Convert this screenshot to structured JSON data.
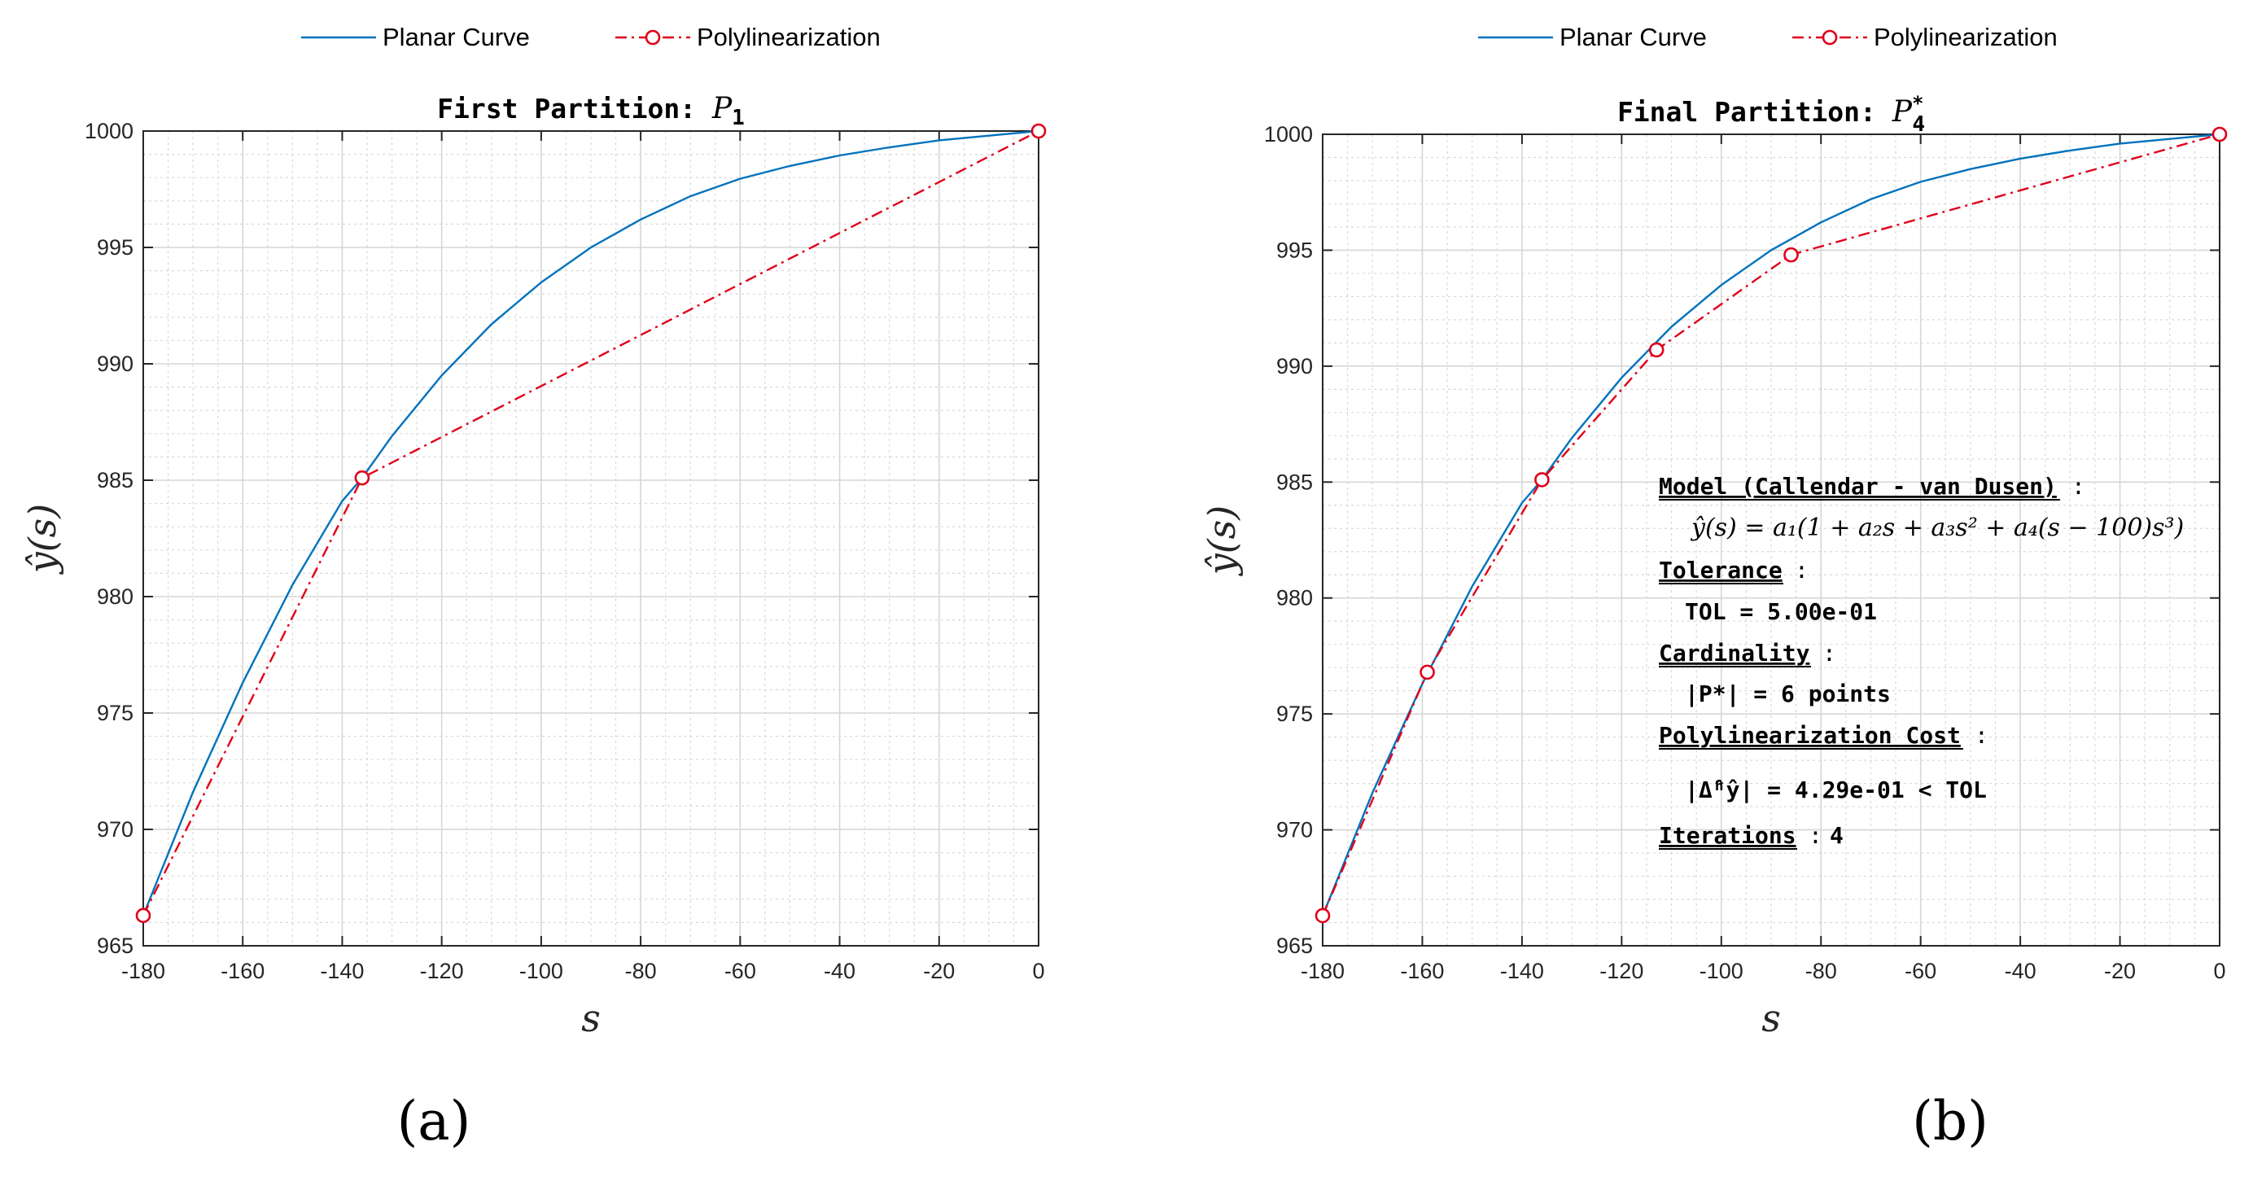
{
  "chart_data": [
    {
      "type": "line",
      "panel_label": "(a)",
      "title": "First Partition: ",
      "title_math": "P",
      "title_sub": "1",
      "title_sup": "",
      "xlabel": "s",
      "ylabel": "ŷ(s)",
      "xlim": [
        -180,
        0
      ],
      "ylim": [
        965,
        1000
      ],
      "xticks": [
        -180,
        -160,
        -140,
        -120,
        -100,
        -80,
        -60,
        -40,
        -20,
        0
      ],
      "yticks": [
        965,
        970,
        975,
        980,
        985,
        990,
        995,
        1000
      ],
      "grid": true,
      "minor_grid": true,
      "legend_position": "top",
      "series": [
        {
          "name": "Planar Curve",
          "color": "#0072BD",
          "style": "solid",
          "x": [
            -180,
            -170,
            -160,
            -150,
            -140,
            -136,
            -130,
            -120,
            -110,
            -100,
            -90,
            -80,
            -70,
            -60,
            -50,
            -40,
            -30,
            -20,
            -10,
            0
          ],
          "y": [
            966.3,
            971.6,
            976.3,
            980.5,
            984.1,
            985.1,
            986.9,
            989.5,
            991.7,
            993.5,
            995.0,
            996.2,
            997.2,
            997.95,
            998.5,
            998.95,
            999.3,
            999.6,
            999.8,
            1000.0
          ]
        },
        {
          "name": "Polylinearization",
          "color": "#E0001B",
          "style": "dashdot",
          "marker": "circle",
          "x": [
            -180,
            -136,
            0
          ],
          "y": [
            966.3,
            985.1,
            1000.0
          ]
        }
      ]
    },
    {
      "type": "line",
      "panel_label": "(b)",
      "title": "Final Partition: ",
      "title_math": "P",
      "title_sub": "4",
      "title_sup": "*",
      "xlabel": "s",
      "ylabel": "ŷ(s)",
      "xlim": [
        -180,
        0
      ],
      "ylim": [
        965,
        1000
      ],
      "xticks": [
        -180,
        -160,
        -140,
        -120,
        -100,
        -80,
        -60,
        -40,
        -20,
        0
      ],
      "yticks": [
        965,
        970,
        975,
        980,
        985,
        990,
        995,
        1000
      ],
      "grid": true,
      "minor_grid": true,
      "legend_position": "top",
      "series": [
        {
          "name": "Planar Curve",
          "color": "#0072BD",
          "style": "solid",
          "x": [
            -180,
            -170,
            -160,
            -150,
            -140,
            -136,
            -130,
            -120,
            -110,
            -100,
            -90,
            -80,
            -70,
            -60,
            -50,
            -40,
            -30,
            -20,
            -10,
            0
          ],
          "y": [
            966.3,
            971.6,
            976.3,
            980.5,
            984.1,
            985.1,
            986.9,
            989.5,
            991.7,
            993.5,
            995.0,
            996.2,
            997.2,
            997.95,
            998.5,
            998.95,
            999.3,
            999.6,
            999.8,
            1000.0
          ]
        },
        {
          "name": "Polylinearization",
          "color": "#E0001B",
          "style": "dashdot",
          "marker": "circle",
          "x": [
            -180,
            -159,
            -136,
            -113,
            -86,
            0
          ],
          "y": [
            966.3,
            976.8,
            985.1,
            990.7,
            994.8,
            1000.0
          ]
        }
      ],
      "annotation": {
        "model_label": "Model (Callendar - van Dusen)",
        "model_formula": "ŷ(s) = a₁(1 + a₂s + a₃s² + a₄(s − 100)s³)",
        "tolerance_label": "Tolerance",
        "tolerance_value": "TOL = 5.00e-01",
        "cardinality_label": "Cardinality",
        "cardinality_value": "|P*| = 6 points",
        "cost_label": "Polylinearization Cost",
        "cost_value": "|Δ̂ʰŷ| = 4.29e-01 < TOL",
        "iterations_label": "Iterations",
        "iterations_value": "4",
        "colon": ":"
      }
    }
  ]
}
